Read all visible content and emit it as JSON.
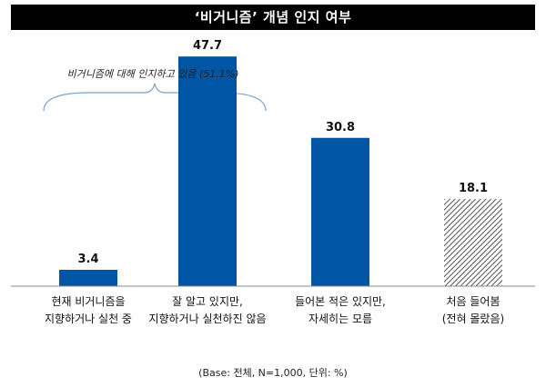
{
  "title": "‘비거니즘’ 개념 인지 여부",
  "annotation": "비거니즘에 대해 인지하고 있음 (51.1%)",
  "source": "(Base: 전체, N=1,000, 단위: %)",
  "colors": {
    "bar": "#0055a5",
    "hatch_bg": "#ffffff",
    "hatch_line": "#555555",
    "brace": "#7ba2c9",
    "baseline": "#888888"
  },
  "chart_data": {
    "type": "bar",
    "categories": [
      [
        "현재 비거니즘을",
        "지향하거나 실천 중"
      ],
      [
        "잘 알고 있지만,",
        "지향하거나 실천하진 않음"
      ],
      [
        "들어본 적은 있지만,",
        "자세히는 모름"
      ],
      [
        "처음 들어봄",
        "(전혀 몰랐음)"
      ]
    ],
    "values": [
      3.4,
      47.7,
      30.8,
      18.1
    ],
    "value_labels": [
      "3.4",
      "47.7",
      "30.8",
      "18.1"
    ],
    "styles": [
      "solid",
      "solid",
      "solid",
      "hatched"
    ],
    "ylim": [
      0,
      50
    ],
    "grid": false,
    "legend": "none"
  }
}
